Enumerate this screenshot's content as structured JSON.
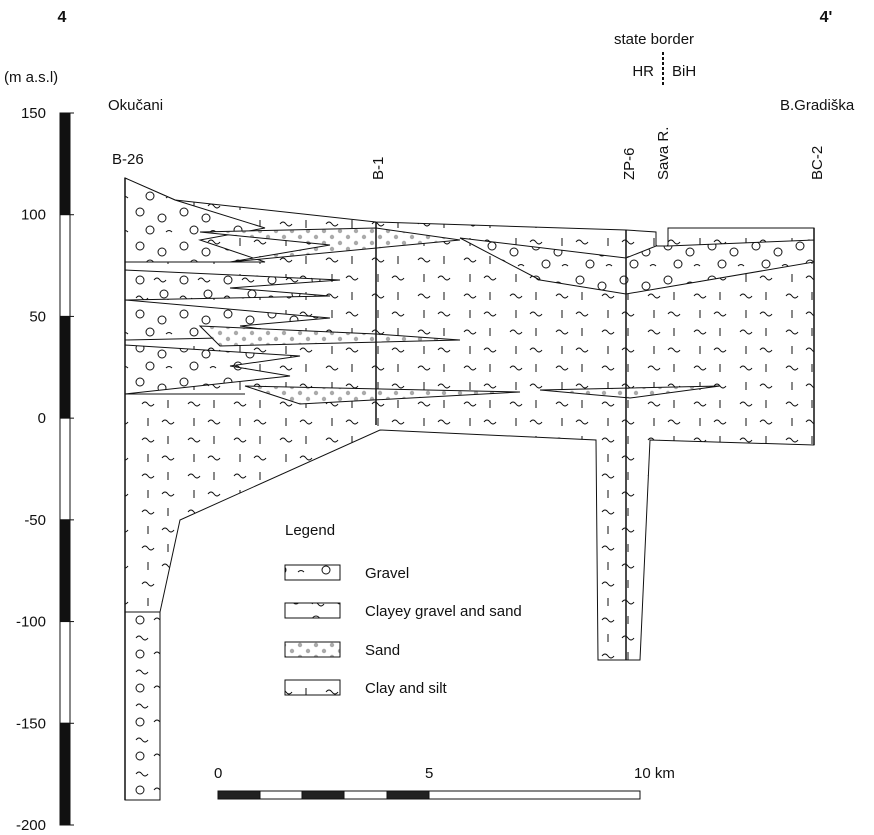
{
  "section": {
    "start_label": "4",
    "end_label": "4'",
    "left_place": "Okučani",
    "right_place": "B.Gradiška",
    "state_border": "state border",
    "left_country": "HR",
    "right_country": "BiH"
  },
  "elevation_axis": {
    "label": "(m a.s.l)",
    "ylim": [
      -200,
      150
    ],
    "ticks": [
      150,
      100,
      50,
      0,
      -50,
      -100,
      -150,
      -200
    ]
  },
  "distance_scale": {
    "xlim": [
      0,
      10
    ],
    "ticks": [
      0,
      5,
      {
        "value": 10,
        "label": "10 km"
      }
    ]
  },
  "wells": [
    {
      "name": "B-26"
    },
    {
      "name": "B-1"
    },
    {
      "name": "ZP-6"
    },
    {
      "name": "Sava R."
    },
    {
      "name": "BC-2"
    }
  ],
  "legend": {
    "title": "Legend",
    "items": [
      "Gravel",
      "Clayey gravel and sand",
      "Sand",
      "Clay and silt"
    ]
  }
}
